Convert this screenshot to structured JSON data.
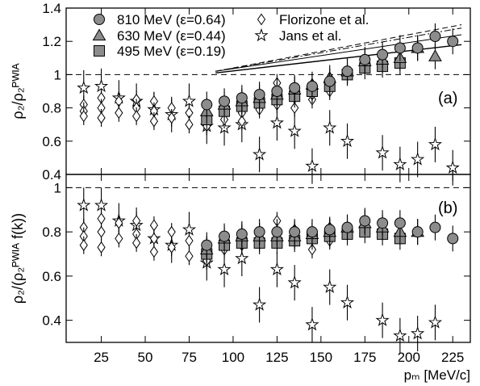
{
  "chart_data": [
    {
      "type": "scatter",
      "panel_label": "(a)",
      "ylabel": "ρ₂/ρ₂ᴾᵂᴵᴬ",
      "ylim": [
        0.4,
        1.4
      ],
      "y_ticks": [
        0.4,
        0.6,
        0.8,
        1,
        1.2,
        1.4
      ],
      "y_tick_labels": [
        "0.4",
        "0.6",
        "0.8",
        "1",
        "1.2",
        "1.4"
      ],
      "legend_position": "top",
      "reference_line": 1,
      "series": [
        {
          "name": "810 MeV (ε=0.64)",
          "marker": "circle",
          "color": "#8c8c8c",
          "x": [
            85,
            95,
            105,
            115,
            125,
            135,
            145,
            155,
            165,
            175,
            185,
            195,
            205,
            215,
            225
          ],
          "y": [
            0.82,
            0.84,
            0.86,
            0.88,
            0.9,
            0.92,
            0.93,
            0.96,
            1.02,
            1.09,
            1.12,
            1.16,
            1.16,
            1.23,
            1.2
          ]
        },
        {
          "name": "630 MeV (ε=0.44)",
          "marker": "triangle",
          "color": "#8c8c8c",
          "x": [
            85,
            95,
            105,
            115,
            125,
            135,
            145,
            155,
            165,
            175,
            185,
            195,
            205,
            215
          ],
          "y": [
            0.78,
            0.82,
            0.84,
            0.86,
            0.88,
            0.91,
            0.94,
            0.98,
            1.02,
            1.08,
            1.09,
            1.1,
            1.16,
            1.11
          ]
        },
        {
          "name": "495 MeV (ε=0.19)",
          "marker": "square",
          "color": "#8c8c8c",
          "x": [
            85,
            95,
            105,
            115,
            125,
            135,
            145,
            155,
            165,
            175,
            185,
            195
          ],
          "y": [
            0.73,
            0.78,
            0.81,
            0.83,
            0.85,
            0.87,
            0.9,
            0.93,
            1.0,
            1.04,
            1.05,
            1.07
          ]
        },
        {
          "name": "Florizone et al.",
          "marker": "diamond",
          "color": "#ffffff",
          "x": [
            15,
            15,
            15,
            25,
            25,
            25,
            35,
            35,
            45,
            45,
            45,
            55,
            55,
            55,
            65,
            65,
            75,
            75,
            85,
            85,
            95,
            95,
            105,
            105,
            105,
            115,
            115,
            125,
            125,
            125,
            135,
            135,
            135,
            145,
            145,
            145,
            155,
            155
          ],
          "y": [
            0.82,
            0.78,
            0.75,
            0.86,
            0.8,
            0.74,
            0.84,
            0.77,
            0.85,
            0.8,
            0.75,
            0.84,
            0.78,
            0.72,
            0.8,
            0.74,
            0.77,
            0.7,
            0.76,
            0.69,
            0.79,
            0.73,
            0.82,
            0.77,
            0.72,
            0.86,
            0.79,
            0.95,
            0.88,
            0.82,
            0.91,
            0.86,
            0.8,
            0.92,
            0.85,
            0.88,
            0.96,
            0.9
          ]
        },
        {
          "name": "Jans et al.",
          "marker": "star",
          "color": "#ffffff",
          "x": [
            15,
            25,
            35,
            45,
            55,
            65,
            75,
            85,
            95,
            105,
            115,
            125,
            135,
            145,
            155,
            165,
            185,
            195,
            205,
            215,
            225
          ],
          "y": [
            0.92,
            0.93,
            0.86,
            0.84,
            0.79,
            0.76,
            0.84,
            0.69,
            0.68,
            0.7,
            0.52,
            0.71,
            0.66,
            0.45,
            0.68,
            0.6,
            0.53,
            0.46,
            0.49,
            0.58,
            0.44
          ]
        }
      ],
      "curves": [
        {
          "style": "solid",
          "x": [
            90,
            230
          ],
          "y": [
            1.01,
            1.18
          ]
        },
        {
          "style": "solid-thin",
          "x": [
            90,
            230
          ],
          "y": [
            1.02,
            1.24
          ]
        },
        {
          "style": "dashed",
          "x": [
            90,
            230
          ],
          "y": [
            1.02,
            1.3
          ]
        },
        {
          "style": "dash-dot",
          "x": [
            90,
            230
          ],
          "y": [
            1.02,
            1.28
          ]
        }
      ]
    },
    {
      "type": "scatter",
      "panel_label": "(b)",
      "xlabel": "pₘ [MeV/c]",
      "ylabel": "ρ₂/(ρ₂ᴾᵂᴵᴬ f(k))",
      "xlim": [
        5,
        235
      ],
      "x_ticks": [
        25,
        50,
        75,
        100,
        125,
        150,
        175,
        200,
        225
      ],
      "x_tick_labels": [
        "25",
        "50",
        "75",
        "100",
        "125",
        "150",
        "175",
        "200",
        "225"
      ],
      "ylim": [
        0.3,
        1.06
      ],
      "y_ticks": [
        0.4,
        0.6,
        0.8,
        1
      ],
      "y_tick_labels": [
        "0.4",
        "0.6",
        "0.8",
        "1"
      ],
      "reference_line": 1,
      "series": [
        {
          "name": "810 MeV (ε=0.64)",
          "marker": "circle",
          "color": "#8c8c8c",
          "x": [
            85,
            95,
            105,
            115,
            125,
            135,
            145,
            155,
            165,
            175,
            185,
            195,
            205,
            215,
            225
          ],
          "y": [
            0.74,
            0.78,
            0.79,
            0.8,
            0.8,
            0.8,
            0.8,
            0.81,
            0.82,
            0.85,
            0.84,
            0.84,
            0.8,
            0.82,
            0.77
          ]
        },
        {
          "name": "630 MeV (ε=0.44)",
          "marker": "triangle",
          "color": "#8c8c8c",
          "x": [
            85,
            95,
            105,
            115,
            125,
            135,
            145,
            155,
            165,
            175,
            185,
            195,
            205
          ],
          "y": [
            0.72,
            0.77,
            0.78,
            0.78,
            0.78,
            0.78,
            0.79,
            0.8,
            0.82,
            0.84,
            0.82,
            0.8,
            0.8
          ]
        },
        {
          "name": "495 MeV (ε=0.19)",
          "marker": "square",
          "color": "#8c8c8c",
          "x": [
            85,
            95,
            105,
            115,
            125,
            135,
            145,
            155,
            165,
            175,
            185,
            195
          ],
          "y": [
            0.7,
            0.74,
            0.75,
            0.75,
            0.75,
            0.76,
            0.77,
            0.78,
            0.79,
            0.8,
            0.79,
            0.77
          ]
        },
        {
          "name": "Florizone et al.",
          "marker": "diamond",
          "color": "#ffffff",
          "x": [
            15,
            15,
            15,
            25,
            25,
            25,
            35,
            35,
            45,
            45,
            45,
            55,
            55,
            55,
            65,
            65,
            75,
            75,
            85,
            85,
            95,
            95,
            105,
            105,
            115,
            115,
            125,
            125,
            125,
            135,
            135,
            145,
            145,
            145,
            155,
            155
          ],
          "y": [
            0.82,
            0.78,
            0.74,
            0.86,
            0.8,
            0.73,
            0.84,
            0.77,
            0.85,
            0.79,
            0.75,
            0.83,
            0.77,
            0.71,
            0.8,
            0.73,
            0.76,
            0.69,
            0.74,
            0.67,
            0.78,
            0.72,
            0.79,
            0.74,
            0.8,
            0.75,
            0.85,
            0.8,
            0.77,
            0.81,
            0.77,
            0.8,
            0.77,
            0.72,
            0.82,
            0.76
          ]
        },
        {
          "name": "Jans et al.",
          "marker": "star",
          "color": "#ffffff",
          "x": [
            15,
            25,
            35,
            45,
            55,
            65,
            75,
            85,
            95,
            105,
            115,
            125,
            135,
            145,
            155,
            165,
            185,
            195,
            205,
            215
          ],
          "y": [
            0.92,
            0.92,
            0.85,
            0.83,
            0.77,
            0.74,
            0.81,
            0.66,
            0.63,
            0.68,
            0.47,
            0.63,
            0.57,
            0.38,
            0.55,
            0.48,
            0.4,
            0.33,
            0.34,
            0.39
          ]
        }
      ],
      "curves": []
    }
  ],
  "legend": {
    "entries": [
      {
        "name": "810 MeV (ε=0.64)",
        "marker": "circle"
      },
      {
        "name": "630 MeV (ε=0.44)",
        "marker": "triangle"
      },
      {
        "name": "495 MeV (ε=0.19)",
        "marker": "square"
      },
      {
        "name": "Florizone et al.",
        "marker": "diamond"
      },
      {
        "name": "Jans et al.",
        "marker": "star"
      }
    ]
  }
}
